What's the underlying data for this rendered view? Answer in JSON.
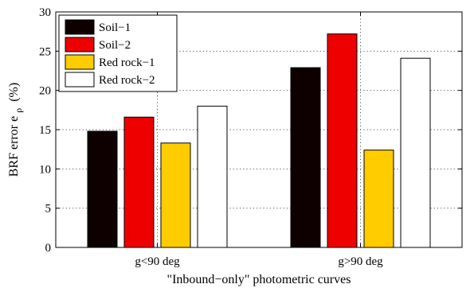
{
  "chart_data": {
    "type": "bar",
    "categories": [
      "g<90 deg",
      "g>90 deg"
    ],
    "series": [
      {
        "name": "Soil−1",
        "color": "#0f0000",
        "values": [
          14.8,
          22.9
        ]
      },
      {
        "name": "Soil−2",
        "color": "#ee0000",
        "values": [
          16.6,
          27.2
        ]
      },
      {
        "name": "Red rock−1",
        "color": "#ffcc00",
        "values": [
          13.3,
          12.4
        ]
      },
      {
        "name": "Red rock−2",
        "color": "#ffffff",
        "values": [
          18.0,
          24.1
        ]
      }
    ],
    "xlabel": "\"Inbound−only\" photometric curves",
    "ylabel_main": "BRF error e",
    "ylabel_sub": "ρ",
    "ylabel_unit": "(%)",
    "ylim": [
      0,
      30
    ],
    "yticks": [
      0,
      5,
      10,
      15,
      20,
      25,
      30
    ],
    "grid": true,
    "legend_position": "top-left"
  }
}
